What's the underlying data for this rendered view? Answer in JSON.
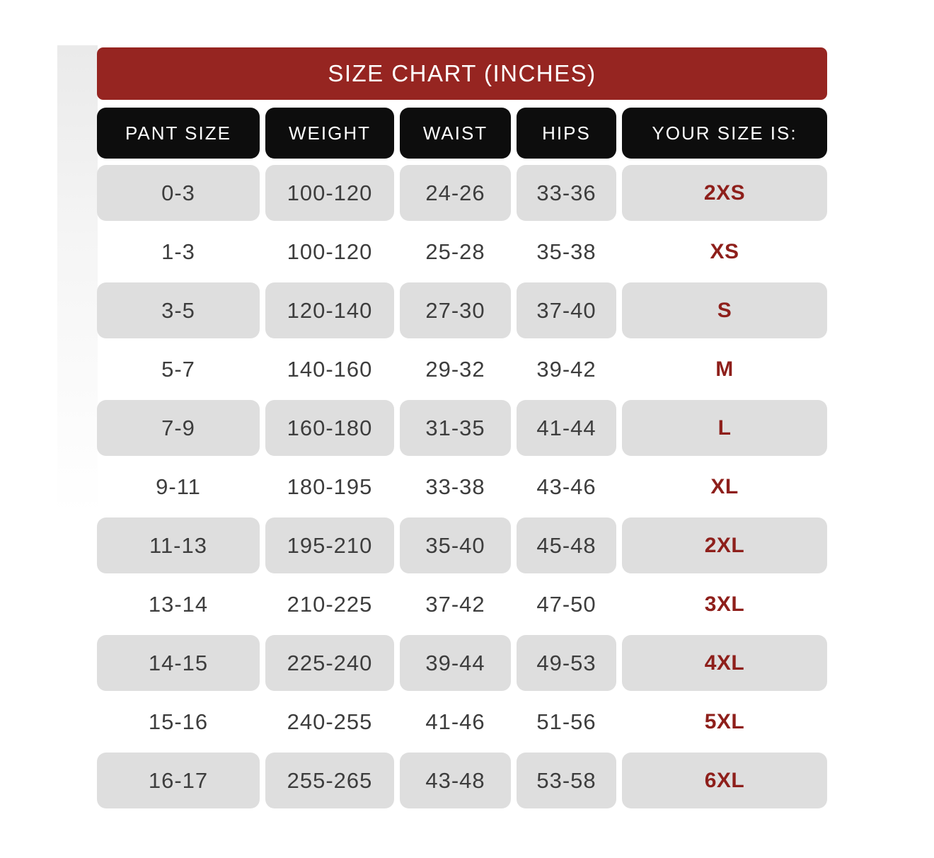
{
  "banner": {
    "title": "SIZE CHART (INCHES)"
  },
  "table": {
    "columns": [
      {
        "label": "PANT SIZE"
      },
      {
        "label": "WEIGHT"
      },
      {
        "label": "WAIST"
      },
      {
        "label": "HIPS"
      },
      {
        "label": "YOUR SIZE IS:"
      }
    ],
    "rows": [
      {
        "pant_size": "0-3",
        "weight": "100-120",
        "waist": "24-26",
        "hips": "33-36",
        "size": "2XS",
        "shaded": true
      },
      {
        "pant_size": "1-3",
        "weight": "100-120",
        "waist": "25-28",
        "hips": "35-38",
        "size": "XS",
        "shaded": false
      },
      {
        "pant_size": "3-5",
        "weight": "120-140",
        "waist": "27-30",
        "hips": "37-40",
        "size": "S",
        "shaded": true
      },
      {
        "pant_size": "5-7",
        "weight": "140-160",
        "waist": "29-32",
        "hips": "39-42",
        "size": "M",
        "shaded": false
      },
      {
        "pant_size": "7-9",
        "weight": "160-180",
        "waist": "31-35",
        "hips": "41-44",
        "size": "L",
        "shaded": true
      },
      {
        "pant_size": "9-11",
        "weight": "180-195",
        "waist": "33-38",
        "hips": "43-46",
        "size": "XL",
        "shaded": false
      },
      {
        "pant_size": "11-13",
        "weight": "195-210",
        "waist": "35-40",
        "hips": "45-48",
        "size": "2XL",
        "shaded": true
      },
      {
        "pant_size": "13-14",
        "weight": "210-225",
        "waist": "37-42",
        "hips": "47-50",
        "size": "3XL",
        "shaded": false
      },
      {
        "pant_size": "14-15",
        "weight": "225-240",
        "waist": "39-44",
        "hips": "49-53",
        "size": "4XL",
        "shaded": true
      },
      {
        "pant_size": "15-16",
        "weight": "240-255",
        "waist": "41-46",
        "hips": "51-56",
        "size": "5XL",
        "shaded": false
      },
      {
        "pant_size": "16-17",
        "weight": "255-265",
        "waist": "43-48",
        "hips": "53-58",
        "size": "6XL",
        "shaded": true
      }
    ]
  },
  "colors": {
    "banner_red": "#962521",
    "size_text_red": "#8e1f1b",
    "header_black": "#0d0d0d",
    "cell_gray": "#dedede",
    "data_text": "#3d3d3d",
    "background": "#ffffff"
  },
  "chart_data": {
    "type": "table",
    "title": "SIZE CHART (INCHES)",
    "columns": [
      "PANT SIZE",
      "WEIGHT",
      "WAIST",
      "HIPS",
      "YOUR SIZE IS:"
    ],
    "rows": [
      [
        "0-3",
        "100-120",
        "24-26",
        "33-36",
        "2XS"
      ],
      [
        "1-3",
        "100-120",
        "25-28",
        "35-38",
        "XS"
      ],
      [
        "3-5",
        "120-140",
        "27-30",
        "37-40",
        "S"
      ],
      [
        "5-7",
        "140-160",
        "29-32",
        "39-42",
        "M"
      ],
      [
        "7-9",
        "160-180",
        "31-35",
        "41-44",
        "L"
      ],
      [
        "9-11",
        "180-195",
        "33-38",
        "43-46",
        "XL"
      ],
      [
        "11-13",
        "195-210",
        "35-40",
        "45-48",
        "2XL"
      ],
      [
        "13-14",
        "210-225",
        "37-42",
        "47-50",
        "3XL"
      ],
      [
        "14-15",
        "225-240",
        "39-44",
        "49-53",
        "4XL"
      ],
      [
        "15-16",
        "240-255",
        "41-46",
        "51-56",
        "5XL"
      ],
      [
        "16-17",
        "255-265",
        "43-48",
        "53-58",
        "6XL"
      ]
    ]
  }
}
